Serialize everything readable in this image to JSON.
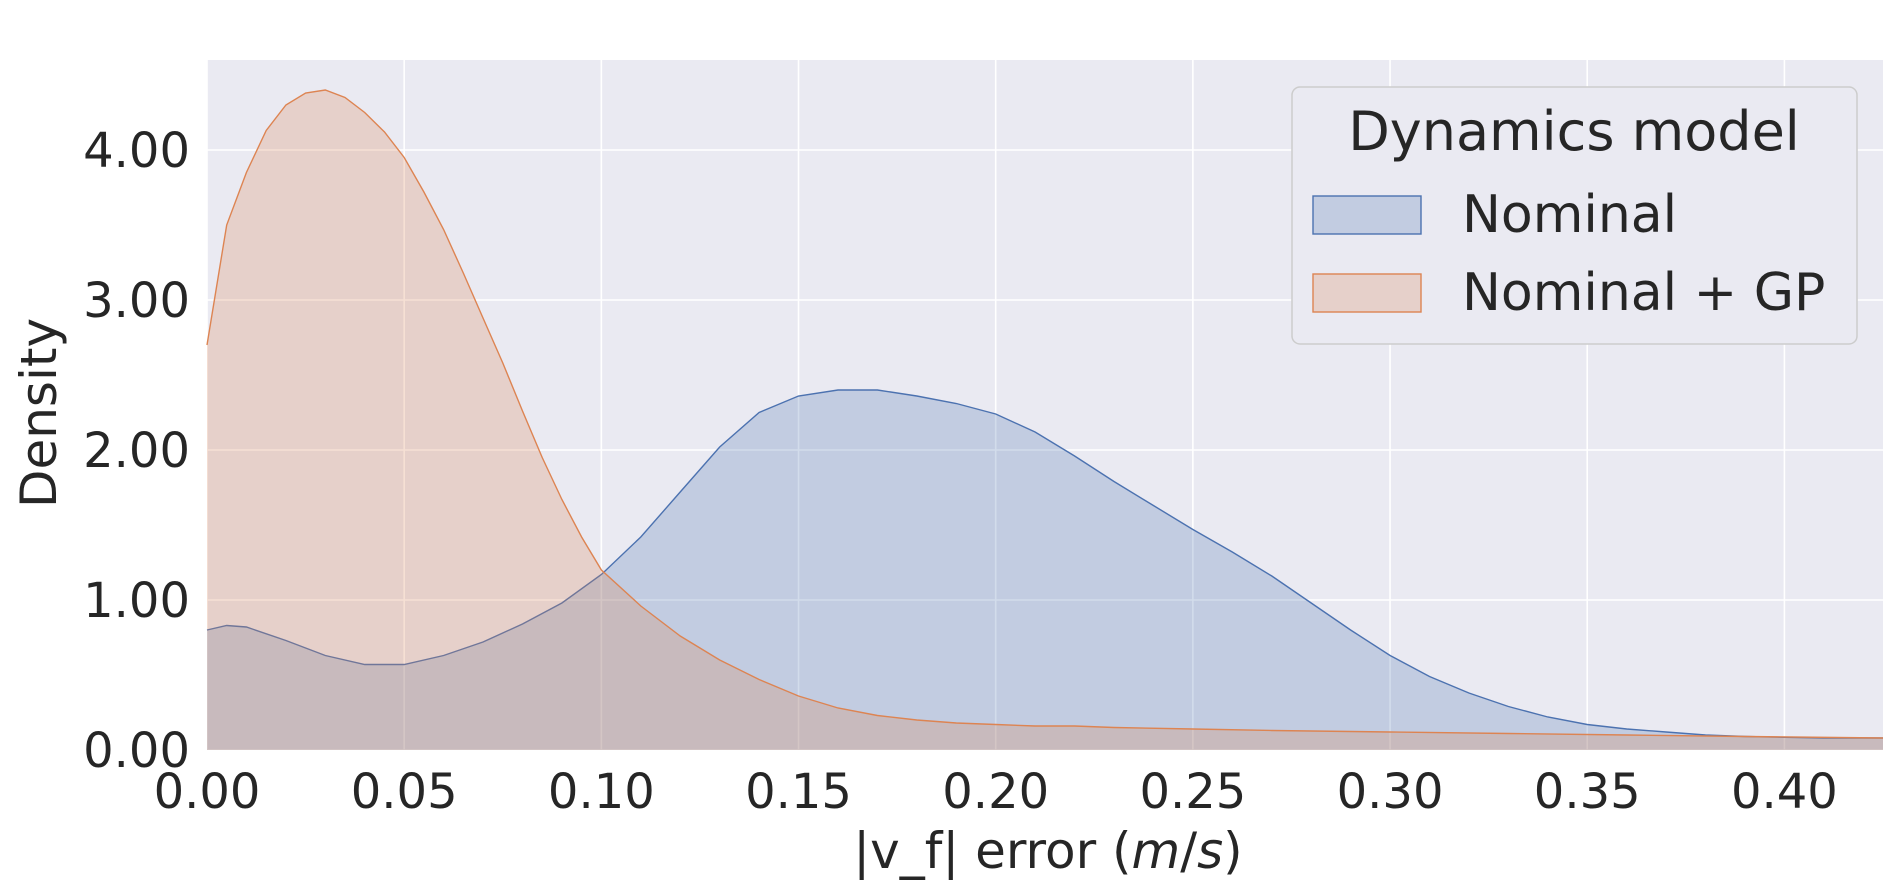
{
  "chart_data": {
    "type": "area",
    "title": "",
    "xlabel_prefix": "|v_f| error (",
    "xlabel_unit_m": "m",
    "xlabel_unit_sep": "/",
    "xlabel_unit_s": "s",
    "xlabel_suffix": ")",
    "ylabel": "Density",
    "xlim": [
      0.0,
      0.425
    ],
    "ylim": [
      0.0,
      4.6
    ],
    "xticks": [
      0.0,
      0.05,
      0.1,
      0.15,
      0.2,
      0.25,
      0.3,
      0.35,
      0.4
    ],
    "xtick_labels": [
      "0.00",
      "0.05",
      "0.10",
      "0.15",
      "0.20",
      "0.25",
      "0.30",
      "0.35",
      "0.40"
    ],
    "yticks": [
      0,
      1,
      2,
      3,
      4
    ],
    "ytick_labels": [
      "0.00",
      "1.00",
      "2.00",
      "3.00",
      "4.00"
    ],
    "grid": true,
    "background": "#EAEAF2",
    "legend": {
      "title": "Dynamics model",
      "placement": "top-right"
    },
    "series": [
      {
        "name": "Nominal",
        "color": "#4C72B0",
        "x": [
          0.0,
          0.005,
          0.01,
          0.02,
          0.03,
          0.04,
          0.05,
          0.06,
          0.07,
          0.08,
          0.09,
          0.1,
          0.11,
          0.12,
          0.13,
          0.14,
          0.15,
          0.16,
          0.17,
          0.18,
          0.19,
          0.2,
          0.21,
          0.22,
          0.23,
          0.24,
          0.25,
          0.26,
          0.27,
          0.28,
          0.29,
          0.3,
          0.31,
          0.32,
          0.33,
          0.34,
          0.35,
          0.36,
          0.37,
          0.38,
          0.39,
          0.4,
          0.41,
          0.425
        ],
        "y": [
          0.8,
          0.83,
          0.82,
          0.73,
          0.63,
          0.57,
          0.57,
          0.63,
          0.72,
          0.84,
          0.98,
          1.17,
          1.42,
          1.72,
          2.02,
          2.25,
          2.36,
          2.4,
          2.4,
          2.36,
          2.31,
          2.24,
          2.12,
          1.96,
          1.79,
          1.63,
          1.47,
          1.32,
          1.16,
          0.98,
          0.8,
          0.63,
          0.49,
          0.38,
          0.29,
          0.22,
          0.17,
          0.14,
          0.12,
          0.1,
          0.09,
          0.085,
          0.08,
          0.08
        ]
      },
      {
        "name": "Nominal + GP",
        "color": "#DD8452",
        "x": [
          0.0,
          0.005,
          0.01,
          0.015,
          0.02,
          0.025,
          0.03,
          0.035,
          0.04,
          0.045,
          0.05,
          0.055,
          0.06,
          0.065,
          0.07,
          0.075,
          0.08,
          0.085,
          0.09,
          0.095,
          0.1,
          0.11,
          0.12,
          0.13,
          0.14,
          0.15,
          0.16,
          0.17,
          0.18,
          0.19,
          0.2,
          0.21,
          0.22,
          0.23,
          0.25,
          0.27,
          0.3,
          0.33,
          0.36,
          0.39,
          0.425
        ],
        "y": [
          2.7,
          3.5,
          3.85,
          4.13,
          4.3,
          4.38,
          4.4,
          4.35,
          4.25,
          4.12,
          3.95,
          3.72,
          3.47,
          3.18,
          2.88,
          2.58,
          2.26,
          1.95,
          1.67,
          1.42,
          1.2,
          0.96,
          0.76,
          0.6,
          0.47,
          0.36,
          0.28,
          0.23,
          0.2,
          0.18,
          0.17,
          0.16,
          0.16,
          0.15,
          0.14,
          0.13,
          0.12,
          0.11,
          0.1,
          0.09,
          0.08
        ]
      }
    ]
  }
}
